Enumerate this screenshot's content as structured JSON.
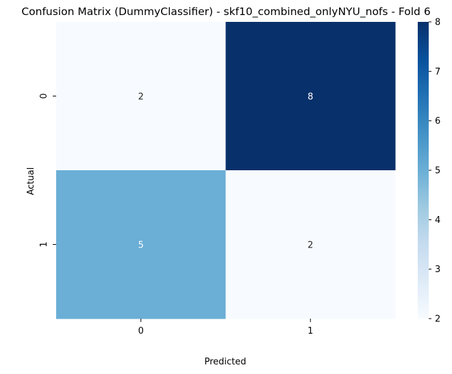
{
  "chart_data": {
    "type": "heatmap",
    "title": "Confusion Matrix (DummyClassifier) - skf10_combined_onlyNYU_nofs - Fold 6",
    "xlabel": "Predicted",
    "ylabel": "Actual",
    "x_categories": [
      "0",
      "1"
    ],
    "y_categories": [
      "0",
      "1"
    ],
    "values": [
      [
        2,
        8
      ],
      [
        5,
        2
      ]
    ],
    "colormap": "Blues",
    "colorbar": {
      "min": 2,
      "max": 8,
      "ticks": [
        "2",
        "3",
        "4",
        "5",
        "6",
        "7",
        "8"
      ]
    }
  }
}
